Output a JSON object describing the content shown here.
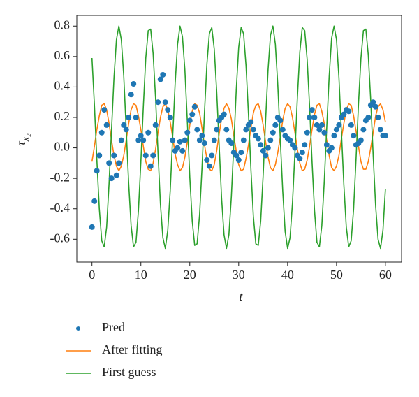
{
  "chart_data": {
    "type": "line",
    "x_label": "t",
    "y_label": "τ",
    "y_label_sub": "x₂",
    "x": [
      0,
      0.5,
      1,
      1.5,
      2,
      2.5,
      3,
      3.5,
      4,
      4.5,
      5,
      5.5,
      6,
      6.5,
      7,
      7.5,
      8,
      8.5,
      9,
      9.5,
      10,
      10.5,
      11,
      11.5,
      12,
      12.5,
      13,
      13.5,
      14,
      14.5,
      15,
      15.5,
      16,
      16.5,
      17,
      17.5,
      18,
      18.5,
      19,
      19.5,
      20,
      20.5,
      21,
      21.5,
      22,
      22.5,
      23,
      23.5,
      24,
      24.5,
      25,
      25.5,
      26,
      26.5,
      27,
      27.5,
      28,
      28.5,
      29,
      29.5,
      30,
      30.5,
      31,
      31.5,
      32,
      32.5,
      33,
      33.5,
      34,
      34.5,
      35,
      35.5,
      36,
      36.5,
      37,
      37.5,
      38,
      38.5,
      39,
      39.5,
      40,
      40.5,
      41,
      41.5,
      42,
      42.5,
      43,
      43.5,
      44,
      44.5,
      45,
      45.5,
      46,
      46.5,
      47,
      47.5,
      48,
      48.5,
      49,
      49.5,
      50,
      50.5,
      51,
      51.5,
      52,
      52.5,
      53,
      53.5,
      54,
      54.5,
      55,
      55.5,
      56,
      56.5,
      57,
      57.5,
      58,
      58.5,
      59,
      59.5,
      60
    ],
    "series": [
      {
        "name": "Pred",
        "style": "scatter",
        "color": "#1f77b4",
        "values": [
          -0.52,
          -0.35,
          -0.15,
          -0.05,
          0.1,
          0.25,
          0.15,
          -0.1,
          -0.2,
          -0.05,
          -0.18,
          -0.1,
          0.05,
          0.15,
          0.12,
          0.2,
          0.35,
          0.42,
          0.2,
          0.05,
          0.08,
          0.05,
          -0.05,
          0.1,
          -0.12,
          -0.05,
          0.15,
          0.3,
          0.45,
          0.48,
          0.3,
          0.25,
          0.2,
          0.05,
          -0.02,
          0.0,
          0.04,
          -0.02,
          0.05,
          0.1,
          0.18,
          0.22,
          0.27,
          0.12,
          0.05,
          0.08,
          0.03,
          -0.08,
          -0.12,
          -0.05,
          0.05,
          0.12,
          0.18,
          0.2,
          0.22,
          0.12,
          0.05,
          0.03,
          -0.03,
          -0.05,
          -0.08,
          -0.03,
          0.05,
          0.12,
          0.15,
          0.17,
          0.12,
          0.08,
          0.06,
          0.02,
          -0.02,
          -0.05,
          0.0,
          0.05,
          0.1,
          0.15,
          0.2,
          0.18,
          0.12,
          0.08,
          0.06,
          0.05,
          0.02,
          0.0,
          -0.05,
          -0.07,
          -0.03,
          0.02,
          0.1,
          0.2,
          0.25,
          0.2,
          0.15,
          0.12,
          0.15,
          0.1,
          0.02,
          -0.02,
          0.0,
          0.08,
          0.12,
          0.15,
          0.2,
          0.22,
          0.25,
          0.24,
          0.15,
          0.08,
          0.02,
          0.03,
          0.05,
          0.12,
          0.18,
          0.2,
          0.28,
          0.3,
          0.27,
          0.2,
          0.12,
          0.08,
          0.08
        ]
      },
      {
        "name": "After fitting",
        "style": "line",
        "color": "#ff7f0e",
        "values": [
          -0.09,
          0.01,
          0.12,
          0.21,
          0.28,
          0.29,
          0.25,
          0.16,
          0.05,
          -0.05,
          -0.12,
          -0.15,
          -0.12,
          -0.05,
          0.05,
          0.16,
          0.25,
          0.29,
          0.28,
          0.21,
          0.12,
          0.01,
          -0.09,
          -0.14,
          -0.15,
          -0.1,
          -0.01,
          0.1,
          0.2,
          0.27,
          0.29,
          0.25,
          0.17,
          0.07,
          -0.04,
          -0.11,
          -0.15,
          -0.13,
          -0.06,
          0.04,
          0.15,
          0.24,
          0.29,
          0.28,
          0.23,
          0.13,
          0.02,
          -0.07,
          -0.14,
          -0.15,
          -0.11,
          -0.02,
          0.09,
          0.19,
          0.26,
          0.29,
          0.26,
          0.19,
          0.08,
          -0.02,
          -0.11,
          -0.15,
          -0.14,
          -0.07,
          0.02,
          0.13,
          0.23,
          0.28,
          0.29,
          0.24,
          0.15,
          0.04,
          -0.06,
          -0.13,
          -0.15,
          -0.11,
          -0.03,
          0.07,
          0.18,
          0.26,
          0.29,
          0.27,
          0.2,
          0.1,
          -0.01,
          -0.1,
          -0.15,
          -0.14,
          -0.08,
          0.01,
          0.12,
          0.22,
          0.28,
          0.29,
          0.24,
          0.16,
          0.05,
          -0.05,
          -0.13,
          -0.15,
          -0.12,
          -0.05,
          0.06,
          0.16,
          0.25,
          0.29,
          0.28,
          0.21,
          0.11,
          0.01,
          -0.09,
          -0.14,
          -0.14,
          -0.09,
          0.0,
          0.1,
          0.21,
          0.27,
          0.29,
          0.25,
          0.17
        ]
      },
      {
        "name": "First guess",
        "style": "line",
        "color": "#2ca02c",
        "values": [
          0.59,
          0.28,
          -0.08,
          -0.4,
          -0.61,
          -0.65,
          -0.52,
          -0.23,
          0.12,
          0.46,
          0.71,
          0.8,
          0.71,
          0.47,
          0.12,
          -0.23,
          -0.51,
          -0.65,
          -0.62,
          -0.41,
          -0.09,
          0.27,
          0.59,
          0.77,
          0.78,
          0.62,
          0.33,
          -0.03,
          -0.37,
          -0.59,
          -0.66,
          -0.54,
          -0.28,
          0.07,
          0.42,
          0.68,
          0.8,
          0.73,
          0.51,
          0.17,
          -0.19,
          -0.48,
          -0.64,
          -0.63,
          -0.44,
          -0.13,
          0.23,
          0.55,
          0.75,
          0.79,
          0.65,
          0.37,
          0.02,
          -0.33,
          -0.57,
          -0.66,
          -0.57,
          -0.32,
          0.02,
          0.38,
          0.66,
          0.79,
          0.75,
          0.54,
          0.22,
          -0.14,
          -0.45,
          -0.63,
          -0.64,
          -0.48,
          -0.18,
          0.18,
          0.51,
          0.74,
          0.8,
          0.68,
          0.41,
          0.06,
          -0.28,
          -0.55,
          -0.66,
          -0.59,
          -0.36,
          -0.03,
          0.33,
          0.63,
          0.79,
          0.77,
          0.58,
          0.27,
          -0.09,
          -0.41,
          -0.62,
          -0.65,
          -0.51,
          -0.22,
          0.13,
          0.47,
          0.72,
          0.8,
          0.71,
          0.46,
          0.11,
          -0.24,
          -0.52,
          -0.65,
          -0.61,
          -0.4,
          -0.07,
          0.29,
          0.59,
          0.77,
          0.78,
          0.61,
          0.31,
          -0.05,
          -0.38,
          -0.6,
          -0.66,
          -0.54,
          -0.27
        ]
      }
    ],
    "xlim": [
      -3.1,
      63.3
    ],
    "ylim": [
      -0.75,
      0.87
    ],
    "xticks": [
      0,
      10,
      20,
      30,
      40,
      50,
      60
    ],
    "yticks": [
      -0.6,
      -0.4,
      -0.2,
      {
        "value": 0,
        "label": "0.0"
      },
      0.2,
      0.4,
      0.6,
      0.8
    ],
    "grid": false,
    "legend": "bottom"
  }
}
